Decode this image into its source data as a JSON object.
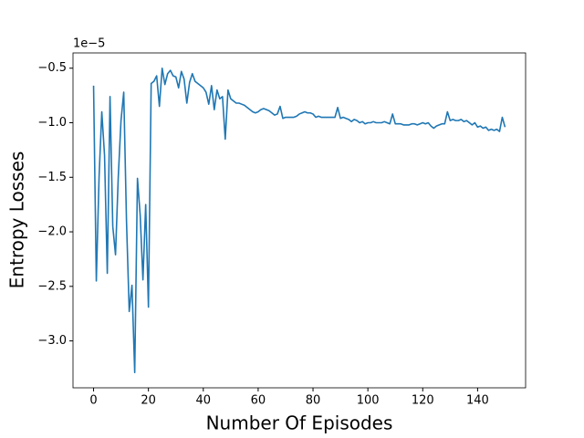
{
  "chart_data": {
    "type": "line",
    "xlabel": "Number Of Episodes",
    "ylabel": "Entropy Losses",
    "y_offset_label": "1e−5",
    "x": [
      0,
      1,
      2,
      3,
      4,
      5,
      6,
      7,
      8,
      9,
      10,
      11,
      12,
      13,
      14,
      15,
      16,
      17,
      18,
      19,
      20,
      21,
      22,
      23,
      24,
      25,
      26,
      27,
      28,
      29,
      30,
      31,
      32,
      33,
      34,
      35,
      36,
      37,
      38,
      39,
      40,
      41,
      42,
      43,
      44,
      45,
      46,
      47,
      48,
      49,
      50,
      51,
      52,
      53,
      54,
      55,
      56,
      57,
      58,
      59,
      60,
      61,
      62,
      63,
      64,
      65,
      66,
      67,
      68,
      69,
      70,
      71,
      72,
      73,
      74,
      75,
      76,
      77,
      78,
      79,
      80,
      81,
      82,
      83,
      84,
      85,
      86,
      87,
      88,
      89,
      90,
      91,
      92,
      93,
      94,
      95,
      96,
      97,
      98,
      99,
      100,
      101,
      102,
      103,
      104,
      105,
      106,
      107,
      108,
      109,
      110,
      111,
      112,
      113,
      114,
      115,
      116,
      117,
      118,
      119,
      120,
      121,
      122,
      123,
      124,
      125,
      126,
      127,
      128,
      129,
      130,
      131,
      132,
      133,
      134,
      135,
      136,
      137,
      138,
      139,
      140,
      141,
      142,
      143,
      144,
      145,
      146,
      147,
      148,
      149,
      150
    ],
    "series": [
      {
        "color": "#1f77b4",
        "values": [
          -0.66,
          -2.45,
          -1.5,
          -0.9,
          -1.3,
          -2.38,
          -0.76,
          -1.95,
          -2.21,
          -1.5,
          -0.98,
          -0.72,
          -1.9,
          -2.73,
          -2.49,
          -3.29,
          -1.51,
          -1.85,
          -2.44,
          -1.75,
          -2.69,
          -0.64,
          -0.62,
          -0.57,
          -0.85,
          -0.5,
          -0.65,
          -0.55,
          -0.52,
          -0.57,
          -0.58,
          -0.68,
          -0.53,
          -0.6,
          -0.82,
          -0.63,
          -0.55,
          -0.62,
          -0.64,
          -0.66,
          -0.68,
          -0.72,
          -0.83,
          -0.66,
          -0.88,
          -0.7,
          -0.78,
          -0.76,
          -1.15,
          -0.7,
          -0.78,
          -0.8,
          -0.82,
          -0.82,
          -0.83,
          -0.84,
          -0.86,
          -0.88,
          -0.9,
          -0.91,
          -0.9,
          -0.88,
          -0.87,
          -0.88,
          -0.89,
          -0.91,
          -0.93,
          -0.92,
          -0.85,
          -0.96,
          -0.95,
          -0.95,
          -0.95,
          -0.95,
          -0.94,
          -0.92,
          -0.91,
          -0.9,
          -0.91,
          -0.91,
          -0.92,
          -0.95,
          -0.94,
          -0.95,
          -0.95,
          -0.95,
          -0.95,
          -0.95,
          -0.95,
          -0.86,
          -0.96,
          -0.95,
          -0.96,
          -0.97,
          -0.99,
          -0.97,
          -0.98,
          -1.0,
          -0.99,
          -1.01,
          -1.0,
          -1.0,
          -0.99,
          -1.0,
          -1.0,
          -1.0,
          -0.99,
          -1.0,
          -1.01,
          -0.92,
          -1.01,
          -1.01,
          -1.01,
          -1.02,
          -1.02,
          -1.02,
          -1.01,
          -1.01,
          -1.02,
          -1.01,
          -1.0,
          -1.01,
          -1.0,
          -1.03,
          -1.05,
          -1.03,
          -1.02,
          -1.01,
          -1.01,
          -0.9,
          -0.98,
          -0.97,
          -0.98,
          -0.98,
          -0.97,
          -0.99,
          -0.98,
          -1.0,
          -1.02,
          -1.0,
          -1.04,
          -1.03,
          -1.05,
          -1.04,
          -1.07,
          -1.06,
          -1.07,
          -1.06,
          -1.08,
          -0.95,
          -1.04
        ]
      }
    ],
    "xlim": [
      -7.5,
      157.5
    ],
    "xticks": [
      0,
      20,
      40,
      60,
      80,
      100,
      120,
      140
    ],
    "ylim": [
      -3.43,
      -0.36
    ],
    "yticks": [
      {
        "value": -3.0,
        "label": "−3.0"
      },
      {
        "value": -2.5,
        "label": "−2.5"
      },
      {
        "value": -2.0,
        "label": "−2.0"
      },
      {
        "value": -1.5,
        "label": "−1.5"
      },
      {
        "value": -1.0,
        "label": "−1.0"
      },
      {
        "value": -0.5,
        "label": "−0.5"
      }
    ],
    "grid": false
  }
}
